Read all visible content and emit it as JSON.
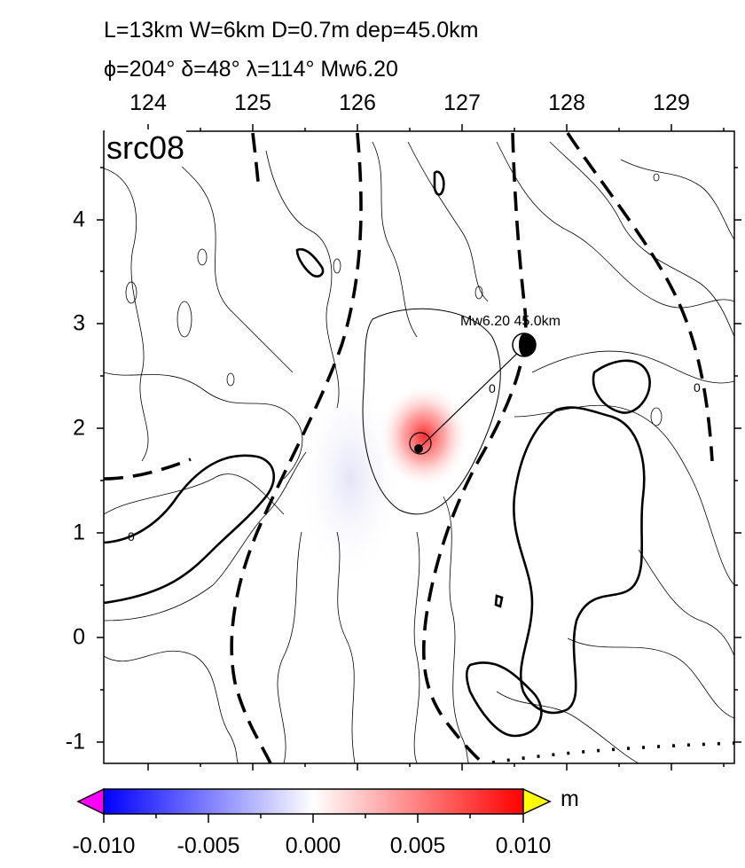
{
  "header": {
    "line1": "L=13km W=6km D=0.7m dep=45.0km",
    "line2": "ϕ=204° δ=48° λ=114° Mw6.20"
  },
  "map": {
    "source_label": "src08",
    "x_ticks": [
      "124",
      "125",
      "126",
      "127",
      "128",
      "129"
    ],
    "y_ticks": [
      "4",
      "3",
      "2",
      "1",
      "0",
      "-1"
    ],
    "epicenter_label": "Mw6.20 45.0km",
    "contour_labels": [
      "0",
      "0",
      "0"
    ]
  },
  "colorbar": {
    "unit": "m",
    "ticks": [
      "-0.010",
      "-0.005",
      "0.000",
      "0.005",
      "0.010"
    ],
    "colors": {
      "min": "#0000ff",
      "mid": "#ffffff",
      "max": "#ff0000",
      "under": "#ff00ff",
      "over": "#ffff00"
    }
  }
}
